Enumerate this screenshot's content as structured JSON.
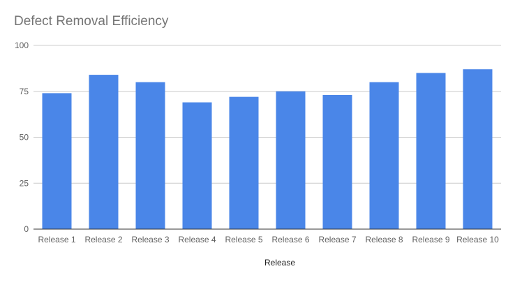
{
  "chart_data": {
    "type": "bar",
    "title": "Defect Removal Efficiency",
    "xlabel": "Release",
    "ylabel": "",
    "categories": [
      "Release 1",
      "Release 2",
      "Release 3",
      "Release 4",
      "Release 5",
      "Release 6",
      "Release 7",
      "Release 8",
      "Release 9",
      "Release 10"
    ],
    "values": [
      74,
      84,
      80,
      69,
      72,
      75,
      73,
      80,
      85,
      87
    ],
    "ylim": [
      0,
      100
    ],
    "yticks": [
      0,
      25,
      50,
      75,
      100
    ],
    "grid": true,
    "legend": "none",
    "colors": {
      "bar": "#4a86e8",
      "grid": "#cccccc",
      "axis": "#333333",
      "tick_text": "#5f5f5f",
      "title_text": "#757575"
    }
  }
}
